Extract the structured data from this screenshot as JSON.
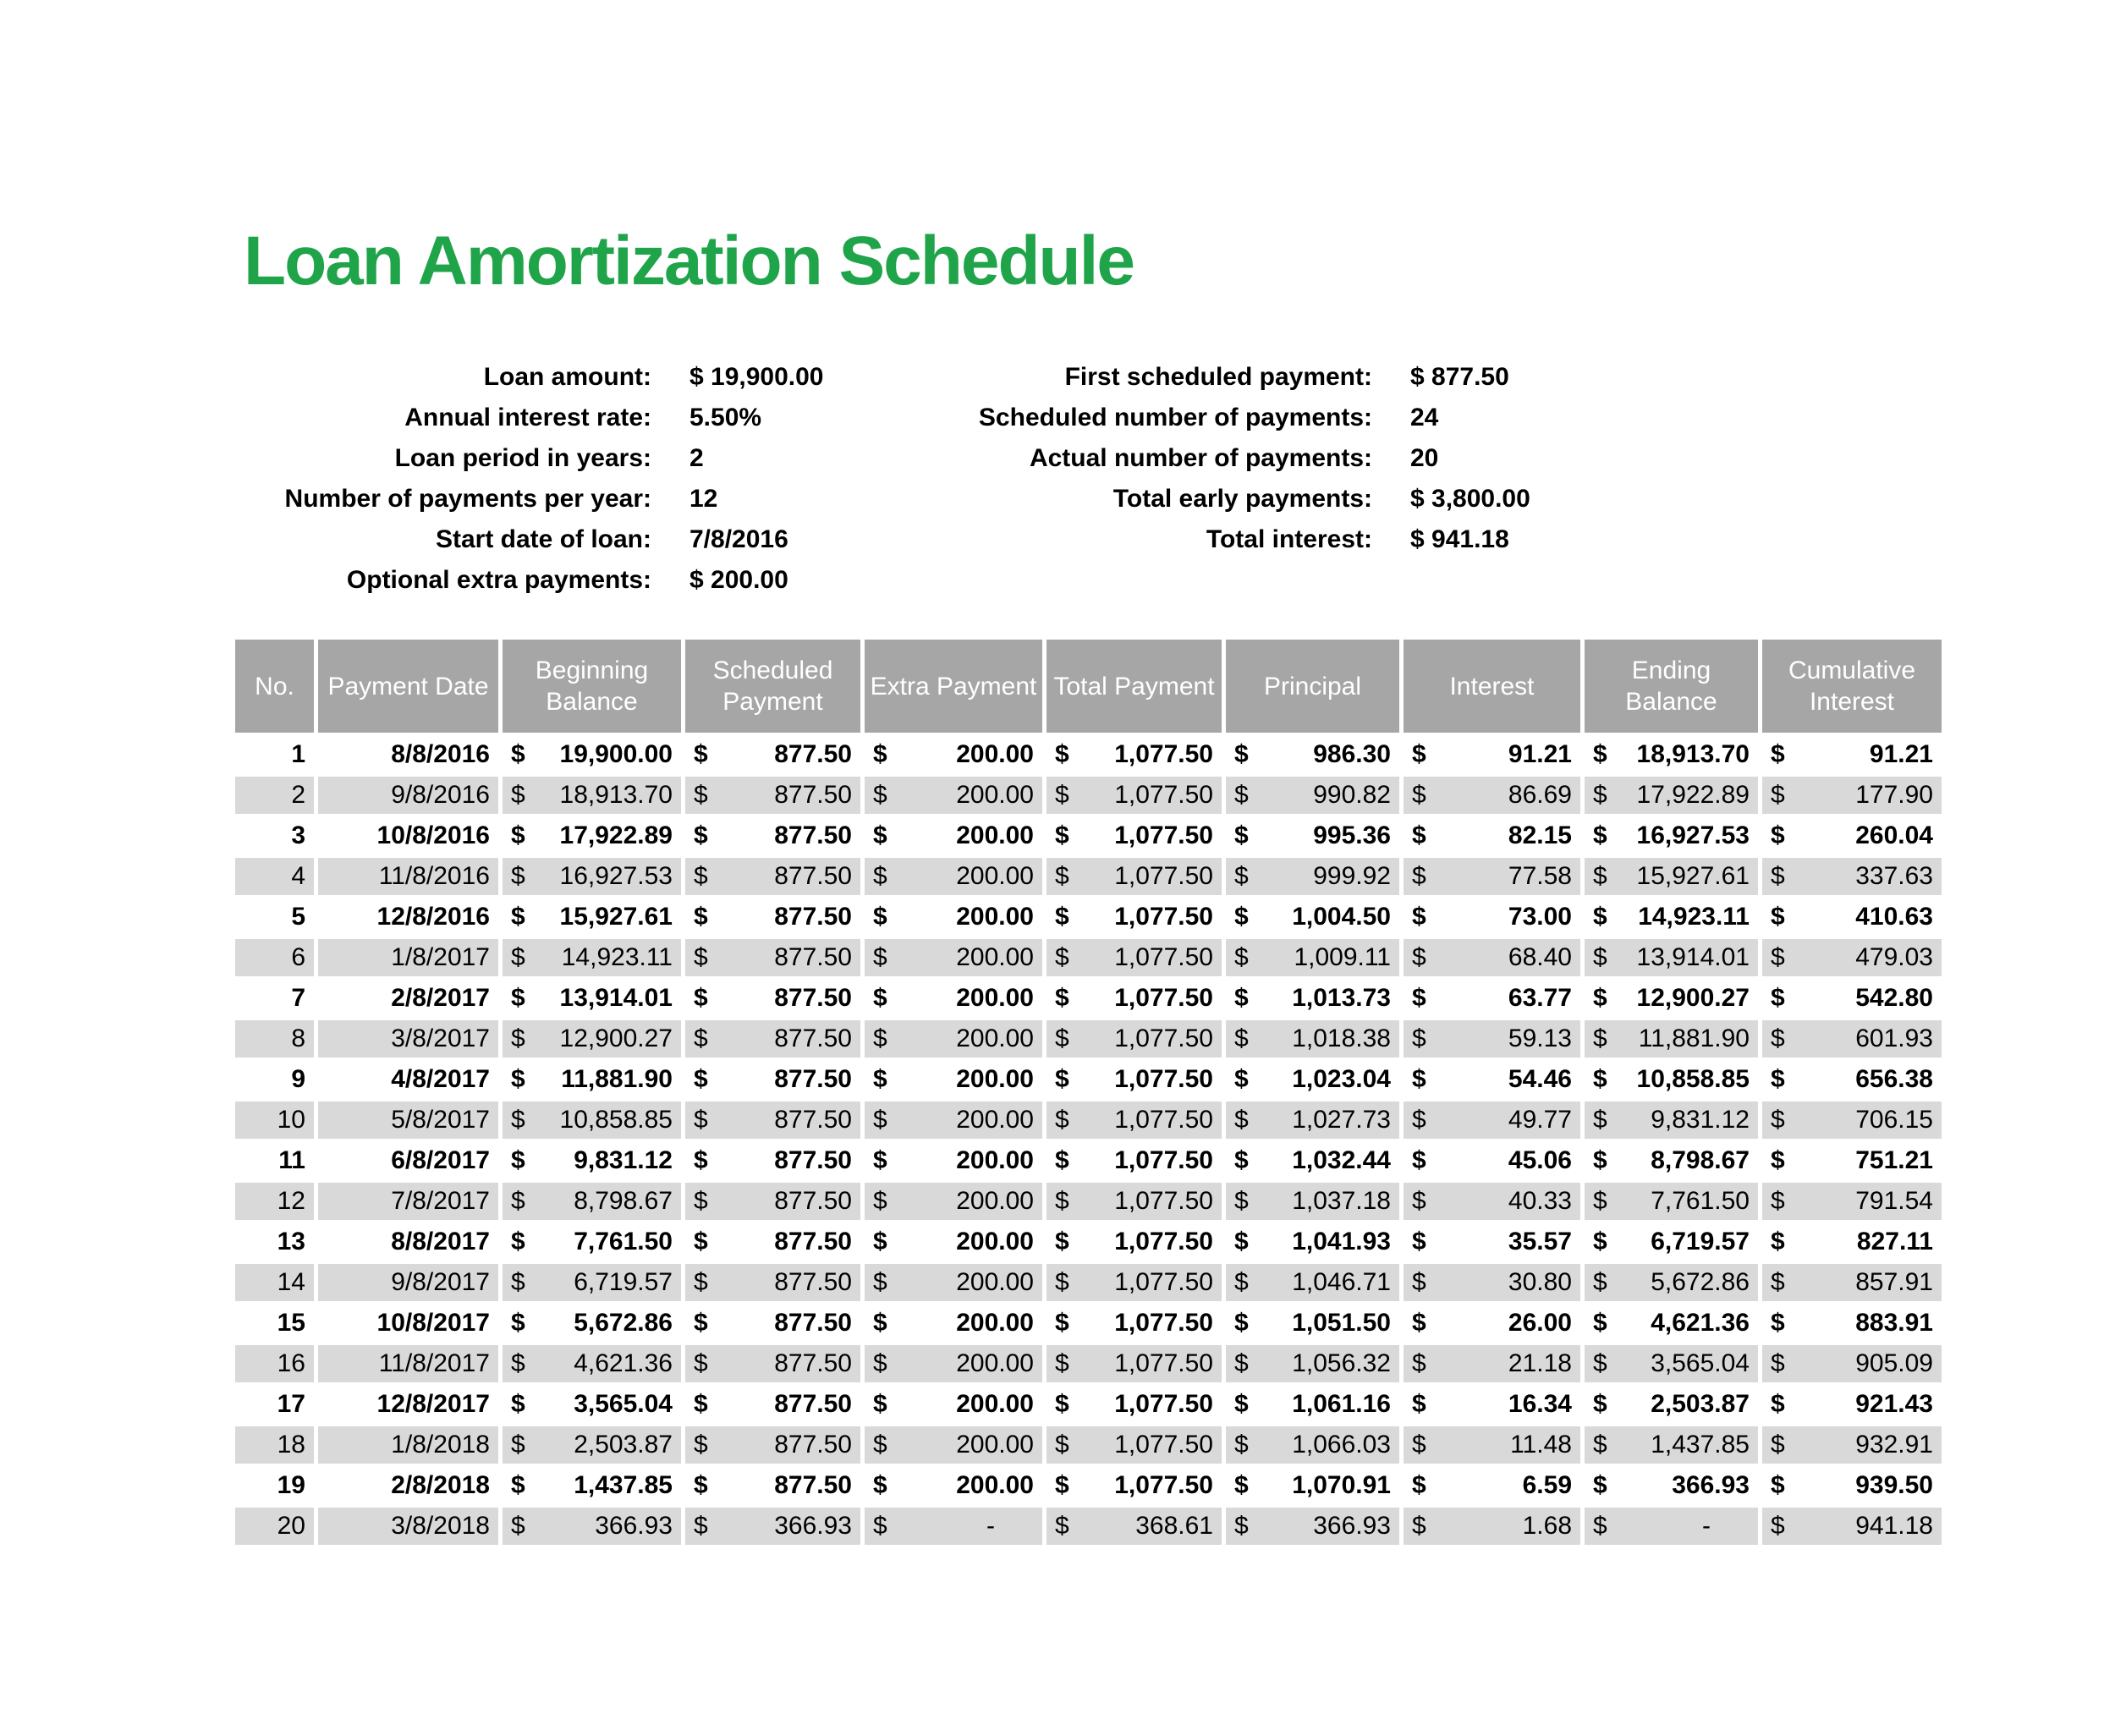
{
  "title": "Loan Amortization Schedule",
  "colors": {
    "title_green": "#1fa44a",
    "header_bg": "#a6a6a6",
    "stripe_bg": "#d9d9d9"
  },
  "currency_symbol": "$",
  "summary_left": [
    {
      "label": "Loan amount:",
      "value": "$ 19,900.00"
    },
    {
      "label": "Annual interest rate:",
      "value": "5.50%"
    },
    {
      "label": "Loan period in years:",
      "value": "2"
    },
    {
      "label": "Number of payments per year:",
      "value": "12"
    },
    {
      "label": "Start date of loan:",
      "value": "7/8/2016"
    },
    {
      "label": "Optional extra payments:",
      "value": "$ 200.00"
    }
  ],
  "summary_right": [
    {
      "label": "First scheduled payment:",
      "value": "$ 877.50"
    },
    {
      "label": "Scheduled number of payments:",
      "value": "24"
    },
    {
      "label": "Actual number of payments:",
      "value": "20"
    },
    {
      "label": "Total early payments:",
      "value": "$ 3,800.00"
    },
    {
      "label": "Total interest:",
      "value": "$ 941.18"
    }
  ],
  "table": {
    "headers": [
      "No.",
      "Payment Date",
      "Beginning Balance",
      "Scheduled Payment",
      "Extra Payment",
      "Total Payment",
      "Principal",
      "Interest",
      "Ending Balance",
      "Cumulative Interest"
    ],
    "rows": [
      [
        "1",
        "8/8/2016",
        "19,900.00",
        "877.50",
        "200.00",
        "1,077.50",
        "986.30",
        "91.21",
        "18,913.70",
        "91.21"
      ],
      [
        "2",
        "9/8/2016",
        "18,913.70",
        "877.50",
        "200.00",
        "1,077.50",
        "990.82",
        "86.69",
        "17,922.89",
        "177.90"
      ],
      [
        "3",
        "10/8/2016",
        "17,922.89",
        "877.50",
        "200.00",
        "1,077.50",
        "995.36",
        "82.15",
        "16,927.53",
        "260.04"
      ],
      [
        "4",
        "11/8/2016",
        "16,927.53",
        "877.50",
        "200.00",
        "1,077.50",
        "999.92",
        "77.58",
        "15,927.61",
        "337.63"
      ],
      [
        "5",
        "12/8/2016",
        "15,927.61",
        "877.50",
        "200.00",
        "1,077.50",
        "1,004.50",
        "73.00",
        "14,923.11",
        "410.63"
      ],
      [
        "6",
        "1/8/2017",
        "14,923.11",
        "877.50",
        "200.00",
        "1,077.50",
        "1,009.11",
        "68.40",
        "13,914.01",
        "479.03"
      ],
      [
        "7",
        "2/8/2017",
        "13,914.01",
        "877.50",
        "200.00",
        "1,077.50",
        "1,013.73",
        "63.77",
        "12,900.27",
        "542.80"
      ],
      [
        "8",
        "3/8/2017",
        "12,900.27",
        "877.50",
        "200.00",
        "1,077.50",
        "1,018.38",
        "59.13",
        "11,881.90",
        "601.93"
      ],
      [
        "9",
        "4/8/2017",
        "11,881.90",
        "877.50",
        "200.00",
        "1,077.50",
        "1,023.04",
        "54.46",
        "10,858.85",
        "656.38"
      ],
      [
        "10",
        "5/8/2017",
        "10,858.85",
        "877.50",
        "200.00",
        "1,077.50",
        "1,027.73",
        "49.77",
        "9,831.12",
        "706.15"
      ],
      [
        "11",
        "6/8/2017",
        "9,831.12",
        "877.50",
        "200.00",
        "1,077.50",
        "1,032.44",
        "45.06",
        "8,798.67",
        "751.21"
      ],
      [
        "12",
        "7/8/2017",
        "8,798.67",
        "877.50",
        "200.00",
        "1,077.50",
        "1,037.18",
        "40.33",
        "7,761.50",
        "791.54"
      ],
      [
        "13",
        "8/8/2017",
        "7,761.50",
        "877.50",
        "200.00",
        "1,077.50",
        "1,041.93",
        "35.57",
        "6,719.57",
        "827.11"
      ],
      [
        "14",
        "9/8/2017",
        "6,719.57",
        "877.50",
        "200.00",
        "1,077.50",
        "1,046.71",
        "30.80",
        "5,672.86",
        "857.91"
      ],
      [
        "15",
        "10/8/2017",
        "5,672.86",
        "877.50",
        "200.00",
        "1,077.50",
        "1,051.50",
        "26.00",
        "4,621.36",
        "883.91"
      ],
      [
        "16",
        "11/8/2017",
        "4,621.36",
        "877.50",
        "200.00",
        "1,077.50",
        "1,056.32",
        "21.18",
        "3,565.04",
        "905.09"
      ],
      [
        "17",
        "12/8/2017",
        "3,565.04",
        "877.50",
        "200.00",
        "1,077.50",
        "1,061.16",
        "16.34",
        "2,503.87",
        "921.43"
      ],
      [
        "18",
        "1/8/2018",
        "2,503.87",
        "877.50",
        "200.00",
        "1,077.50",
        "1,066.03",
        "11.48",
        "1,437.85",
        "932.91"
      ],
      [
        "19",
        "2/8/2018",
        "1,437.85",
        "877.50",
        "200.00",
        "1,077.50",
        "1,070.91",
        "6.59",
        "366.93",
        "939.50"
      ],
      [
        "20",
        "3/8/2018",
        "366.93",
        "366.93",
        "-",
        "368.61",
        "366.93",
        "1.68",
        "-",
        "941.18"
      ]
    ]
  }
}
